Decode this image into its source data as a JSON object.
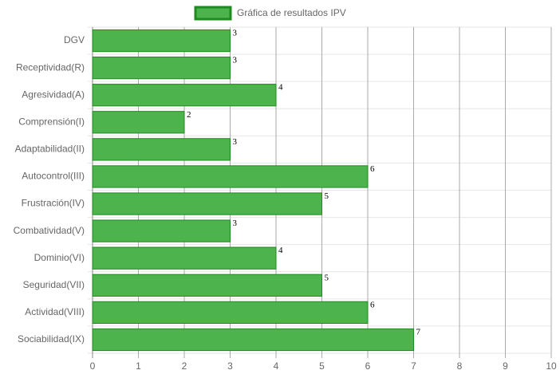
{
  "chart_data": {
    "type": "hbar",
    "categories": [
      "DGV",
      "Receptividad(R)",
      "Agresividad(A)",
      "Comprensión(I)",
      "Adaptabilidad(II)",
      "Autocontrol(III)",
      "Frustración(IV)",
      "Combatividad(V)",
      "Dominio(VI)",
      "Seguridad(VII)",
      "Actividad(VIII)",
      "Sociabilidad(IX)"
    ],
    "series": [
      {
        "name": "Gráfica de resultados IPV",
        "color": "#4db34d",
        "border_color": "#1f8a1f",
        "values": [
          3,
          3,
          4,
          2,
          3,
          6,
          5,
          3,
          4,
          5,
          6,
          7
        ]
      }
    ],
    "xlim": [
      0,
      10
    ],
    "xticks": [
      0,
      1,
      2,
      3,
      4,
      5,
      6,
      7,
      8,
      9,
      10
    ],
    "grid": true,
    "legend": "top"
  }
}
